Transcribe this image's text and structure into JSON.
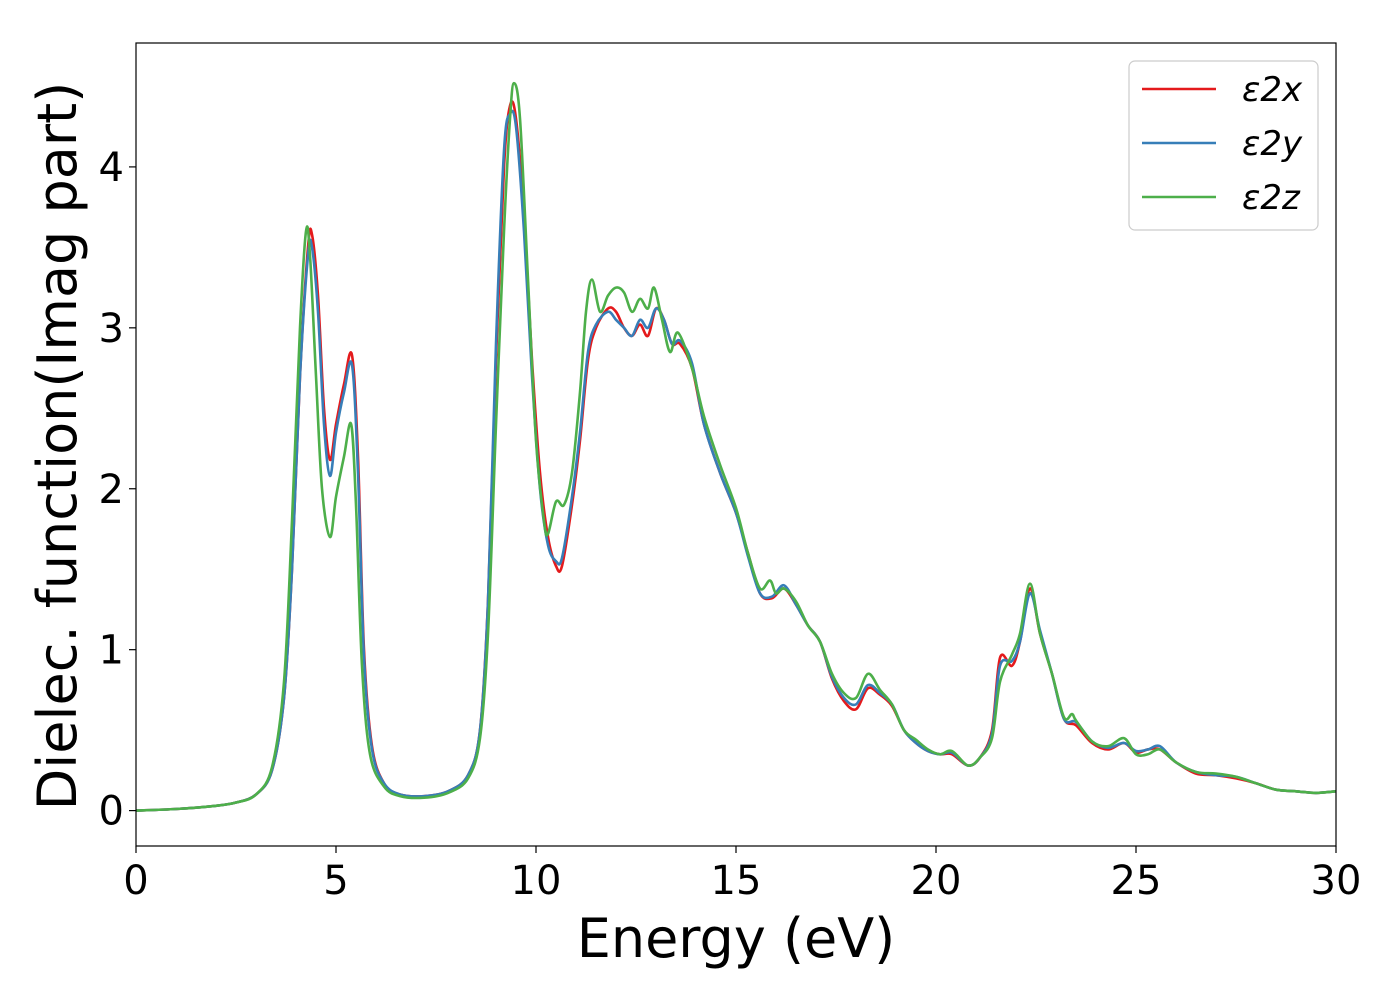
{
  "chart_data": {
    "type": "line",
    "title": "",
    "xlabel": "Energy (eV)",
    "ylabel": "Dielec. function(Imag part)",
    "xlim": [
      0,
      30
    ],
    "ylim": [
      -0.22,
      4.77
    ],
    "xticks": [
      0,
      5,
      10,
      15,
      20,
      25,
      30
    ],
    "xtick_labels": [
      "0",
      "5",
      "10",
      "15",
      "20",
      "25",
      "30"
    ],
    "yticks": [
      0,
      1,
      2,
      3,
      4
    ],
    "ytick_labels": [
      "0",
      "1",
      "2",
      "3",
      "4"
    ],
    "grid": false,
    "legend_position": "top-right",
    "series": [
      {
        "name": "ε2x",
        "color": "#e41a1c",
        "points": [
          [
            0,
            0.0
          ],
          [
            1,
            0.01
          ],
          [
            2,
            0.03
          ],
          [
            2.5,
            0.05
          ],
          [
            3,
            0.1
          ],
          [
            3.4,
            0.25
          ],
          [
            3.7,
            0.7
          ],
          [
            3.9,
            1.5
          ],
          [
            4.1,
            2.7
          ],
          [
            4.3,
            3.5
          ],
          [
            4.4,
            3.58
          ],
          [
            4.55,
            3.2
          ],
          [
            4.7,
            2.5
          ],
          [
            4.85,
            2.18
          ],
          [
            5.0,
            2.4
          ],
          [
            5.2,
            2.65
          ],
          [
            5.4,
            2.83
          ],
          [
            5.55,
            2.2
          ],
          [
            5.7,
            1.0
          ],
          [
            5.9,
            0.4
          ],
          [
            6.2,
            0.17
          ],
          [
            6.6,
            0.1
          ],
          [
            7.2,
            0.09
          ],
          [
            7.8,
            0.12
          ],
          [
            8.3,
            0.22
          ],
          [
            8.6,
            0.5
          ],
          [
            8.8,
            1.3
          ],
          [
            9.0,
            2.8
          ],
          [
            9.2,
            4.0
          ],
          [
            9.35,
            4.38
          ],
          [
            9.5,
            4.3
          ],
          [
            9.7,
            3.7
          ],
          [
            9.9,
            2.8
          ],
          [
            10.1,
            2.1
          ],
          [
            10.3,
            1.7
          ],
          [
            10.5,
            1.52
          ],
          [
            10.65,
            1.52
          ],
          [
            10.9,
            1.9
          ],
          [
            11.1,
            2.3
          ],
          [
            11.3,
            2.8
          ],
          [
            11.5,
            3.0
          ],
          [
            11.8,
            3.12
          ],
          [
            12.0,
            3.1
          ],
          [
            12.2,
            3.0
          ],
          [
            12.4,
            2.95
          ],
          [
            12.6,
            3.02
          ],
          [
            12.8,
            2.95
          ],
          [
            13.0,
            3.12
          ],
          [
            13.2,
            3.05
          ],
          [
            13.4,
            2.9
          ],
          [
            13.6,
            2.9
          ],
          [
            13.9,
            2.75
          ],
          [
            14.2,
            2.4
          ],
          [
            14.6,
            2.1
          ],
          [
            15.0,
            1.85
          ],
          [
            15.3,
            1.6
          ],
          [
            15.6,
            1.35
          ],
          [
            15.9,
            1.32
          ],
          [
            16.2,
            1.38
          ],
          [
            16.5,
            1.28
          ],
          [
            16.8,
            1.15
          ],
          [
            17.1,
            1.05
          ],
          [
            17.4,
            0.82
          ],
          [
            17.7,
            0.68
          ],
          [
            18.0,
            0.63
          ],
          [
            18.3,
            0.76
          ],
          [
            18.6,
            0.72
          ],
          [
            18.9,
            0.65
          ],
          [
            19.2,
            0.5
          ],
          [
            19.5,
            0.42
          ],
          [
            19.8,
            0.37
          ],
          [
            20.1,
            0.35
          ],
          [
            20.4,
            0.35
          ],
          [
            20.8,
            0.28
          ],
          [
            21.1,
            0.33
          ],
          [
            21.4,
            0.5
          ],
          [
            21.6,
            0.95
          ],
          [
            21.9,
            0.9
          ],
          [
            22.1,
            1.05
          ],
          [
            22.35,
            1.38
          ],
          [
            22.6,
            1.1
          ],
          [
            22.9,
            0.85
          ],
          [
            23.2,
            0.57
          ],
          [
            23.5,
            0.53
          ],
          [
            23.9,
            0.42
          ],
          [
            24.3,
            0.38
          ],
          [
            24.7,
            0.42
          ],
          [
            25.0,
            0.36
          ],
          [
            25.3,
            0.38
          ],
          [
            25.6,
            0.38
          ],
          [
            26.0,
            0.3
          ],
          [
            26.5,
            0.23
          ],
          [
            27.0,
            0.22
          ],
          [
            27.5,
            0.2
          ],
          [
            28.0,
            0.17
          ],
          [
            28.5,
            0.13
          ],
          [
            29.0,
            0.12
          ],
          [
            29.5,
            0.11
          ],
          [
            30.0,
            0.12
          ]
        ]
      },
      {
        "name": "ε2y",
        "color": "#377eb8",
        "points": [
          [
            0,
            0.0
          ],
          [
            1,
            0.01
          ],
          [
            2,
            0.03
          ],
          [
            2.5,
            0.05
          ],
          [
            3,
            0.1
          ],
          [
            3.4,
            0.25
          ],
          [
            3.7,
            0.7
          ],
          [
            3.9,
            1.5
          ],
          [
            4.1,
            2.7
          ],
          [
            4.3,
            3.45
          ],
          [
            4.4,
            3.5
          ],
          [
            4.55,
            3.1
          ],
          [
            4.7,
            2.4
          ],
          [
            4.85,
            2.08
          ],
          [
            5.0,
            2.35
          ],
          [
            5.2,
            2.6
          ],
          [
            5.4,
            2.77
          ],
          [
            5.55,
            2.1
          ],
          [
            5.7,
            0.95
          ],
          [
            5.9,
            0.38
          ],
          [
            6.2,
            0.17
          ],
          [
            6.6,
            0.1
          ],
          [
            7.2,
            0.09
          ],
          [
            7.8,
            0.12
          ],
          [
            8.3,
            0.22
          ],
          [
            8.6,
            0.5
          ],
          [
            8.8,
            1.3
          ],
          [
            9.0,
            2.9
          ],
          [
            9.2,
            4.1
          ],
          [
            9.35,
            4.33
          ],
          [
            9.5,
            4.25
          ],
          [
            9.7,
            3.6
          ],
          [
            9.9,
            2.7
          ],
          [
            10.1,
            2.0
          ],
          [
            10.3,
            1.65
          ],
          [
            10.5,
            1.55
          ],
          [
            10.65,
            1.57
          ],
          [
            10.9,
            1.95
          ],
          [
            11.1,
            2.35
          ],
          [
            11.3,
            2.85
          ],
          [
            11.5,
            3.02
          ],
          [
            11.8,
            3.1
          ],
          [
            12.0,
            3.05
          ],
          [
            12.2,
            3.0
          ],
          [
            12.4,
            2.95
          ],
          [
            12.6,
            3.05
          ],
          [
            12.8,
            3.0
          ],
          [
            13.0,
            3.12
          ],
          [
            13.2,
            3.05
          ],
          [
            13.4,
            2.9
          ],
          [
            13.6,
            2.92
          ],
          [
            13.9,
            2.78
          ],
          [
            14.2,
            2.4
          ],
          [
            14.6,
            2.1
          ],
          [
            15.0,
            1.85
          ],
          [
            15.3,
            1.58
          ],
          [
            15.6,
            1.35
          ],
          [
            15.9,
            1.33
          ],
          [
            16.2,
            1.4
          ],
          [
            16.5,
            1.28
          ],
          [
            16.8,
            1.15
          ],
          [
            17.1,
            1.05
          ],
          [
            17.4,
            0.83
          ],
          [
            17.7,
            0.7
          ],
          [
            18.0,
            0.66
          ],
          [
            18.3,
            0.78
          ],
          [
            18.6,
            0.73
          ],
          [
            18.9,
            0.66
          ],
          [
            19.2,
            0.5
          ],
          [
            19.5,
            0.42
          ],
          [
            19.8,
            0.37
          ],
          [
            20.1,
            0.35
          ],
          [
            20.4,
            0.36
          ],
          [
            20.8,
            0.28
          ],
          [
            21.1,
            0.33
          ],
          [
            21.4,
            0.48
          ],
          [
            21.6,
            0.9
          ],
          [
            21.9,
            0.93
          ],
          [
            22.1,
            1.05
          ],
          [
            22.35,
            1.35
          ],
          [
            22.6,
            1.12
          ],
          [
            22.9,
            0.85
          ],
          [
            23.2,
            0.57
          ],
          [
            23.5,
            0.55
          ],
          [
            23.9,
            0.43
          ],
          [
            24.3,
            0.39
          ],
          [
            24.7,
            0.42
          ],
          [
            25.0,
            0.37
          ],
          [
            25.3,
            0.38
          ],
          [
            25.6,
            0.4
          ],
          [
            26.0,
            0.3
          ],
          [
            26.5,
            0.24
          ],
          [
            27.0,
            0.22
          ],
          [
            27.5,
            0.21
          ],
          [
            28.0,
            0.17
          ],
          [
            28.5,
            0.13
          ],
          [
            29.0,
            0.12
          ],
          [
            29.5,
            0.11
          ],
          [
            30.0,
            0.12
          ]
        ]
      },
      {
        "name": "ε2z",
        "color": "#4daf4a",
        "points": [
          [
            0,
            0.0
          ],
          [
            1,
            0.01
          ],
          [
            2,
            0.03
          ],
          [
            2.5,
            0.05
          ],
          [
            3,
            0.1
          ],
          [
            3.4,
            0.27
          ],
          [
            3.7,
            0.8
          ],
          [
            3.9,
            1.8
          ],
          [
            4.1,
            3.0
          ],
          [
            4.25,
            3.6
          ],
          [
            4.35,
            3.45
          ],
          [
            4.5,
            2.7
          ],
          [
            4.65,
            2.0
          ],
          [
            4.85,
            1.7
          ],
          [
            5.0,
            1.95
          ],
          [
            5.2,
            2.2
          ],
          [
            5.38,
            2.4
          ],
          [
            5.5,
            1.9
          ],
          [
            5.65,
            0.9
          ],
          [
            5.85,
            0.35
          ],
          [
            6.2,
            0.15
          ],
          [
            6.6,
            0.09
          ],
          [
            7.2,
            0.08
          ],
          [
            7.8,
            0.11
          ],
          [
            8.3,
            0.2
          ],
          [
            8.6,
            0.45
          ],
          [
            8.8,
            1.1
          ],
          [
            9.0,
            2.4
          ],
          [
            9.2,
            3.6
          ],
          [
            9.35,
            4.3
          ],
          [
            9.45,
            4.52
          ],
          [
            9.6,
            4.3
          ],
          [
            9.8,
            3.3
          ],
          [
            10.0,
            2.3
          ],
          [
            10.2,
            1.8
          ],
          [
            10.3,
            1.72
          ],
          [
            10.5,
            1.92
          ],
          [
            10.7,
            1.9
          ],
          [
            10.9,
            2.1
          ],
          [
            11.1,
            2.6
          ],
          [
            11.25,
            3.1
          ],
          [
            11.4,
            3.3
          ],
          [
            11.6,
            3.1
          ],
          [
            11.8,
            3.2
          ],
          [
            12.0,
            3.25
          ],
          [
            12.2,
            3.22
          ],
          [
            12.4,
            3.1
          ],
          [
            12.6,
            3.18
          ],
          [
            12.8,
            3.12
          ],
          [
            12.95,
            3.25
          ],
          [
            13.15,
            3.05
          ],
          [
            13.35,
            2.85
          ],
          [
            13.55,
            2.97
          ],
          [
            13.9,
            2.75
          ],
          [
            14.2,
            2.45
          ],
          [
            14.6,
            2.15
          ],
          [
            15.0,
            1.88
          ],
          [
            15.3,
            1.6
          ],
          [
            15.6,
            1.38
          ],
          [
            15.85,
            1.43
          ],
          [
            16.0,
            1.35
          ],
          [
            16.2,
            1.38
          ],
          [
            16.5,
            1.3
          ],
          [
            16.8,
            1.15
          ],
          [
            17.1,
            1.05
          ],
          [
            17.4,
            0.85
          ],
          [
            17.7,
            0.73
          ],
          [
            18.0,
            0.7
          ],
          [
            18.3,
            0.85
          ],
          [
            18.6,
            0.75
          ],
          [
            18.9,
            0.66
          ],
          [
            19.2,
            0.5
          ],
          [
            19.5,
            0.44
          ],
          [
            19.8,
            0.38
          ],
          [
            20.1,
            0.35
          ],
          [
            20.4,
            0.37
          ],
          [
            20.8,
            0.28
          ],
          [
            21.1,
            0.33
          ],
          [
            21.4,
            0.45
          ],
          [
            21.6,
            0.8
          ],
          [
            21.9,
            0.97
          ],
          [
            22.1,
            1.1
          ],
          [
            22.35,
            1.41
          ],
          [
            22.6,
            1.1
          ],
          [
            22.9,
            0.85
          ],
          [
            23.2,
            0.58
          ],
          [
            23.4,
            0.6
          ],
          [
            23.5,
            0.56
          ],
          [
            23.9,
            0.43
          ],
          [
            24.3,
            0.4
          ],
          [
            24.7,
            0.45
          ],
          [
            25.0,
            0.35
          ],
          [
            25.3,
            0.35
          ],
          [
            25.6,
            0.38
          ],
          [
            26.0,
            0.3
          ],
          [
            26.5,
            0.24
          ],
          [
            27.0,
            0.23
          ],
          [
            27.5,
            0.21
          ],
          [
            28.0,
            0.17
          ],
          [
            28.5,
            0.13
          ],
          [
            29.0,
            0.12
          ],
          [
            29.5,
            0.11
          ],
          [
            30.0,
            0.12
          ]
        ]
      }
    ]
  }
}
